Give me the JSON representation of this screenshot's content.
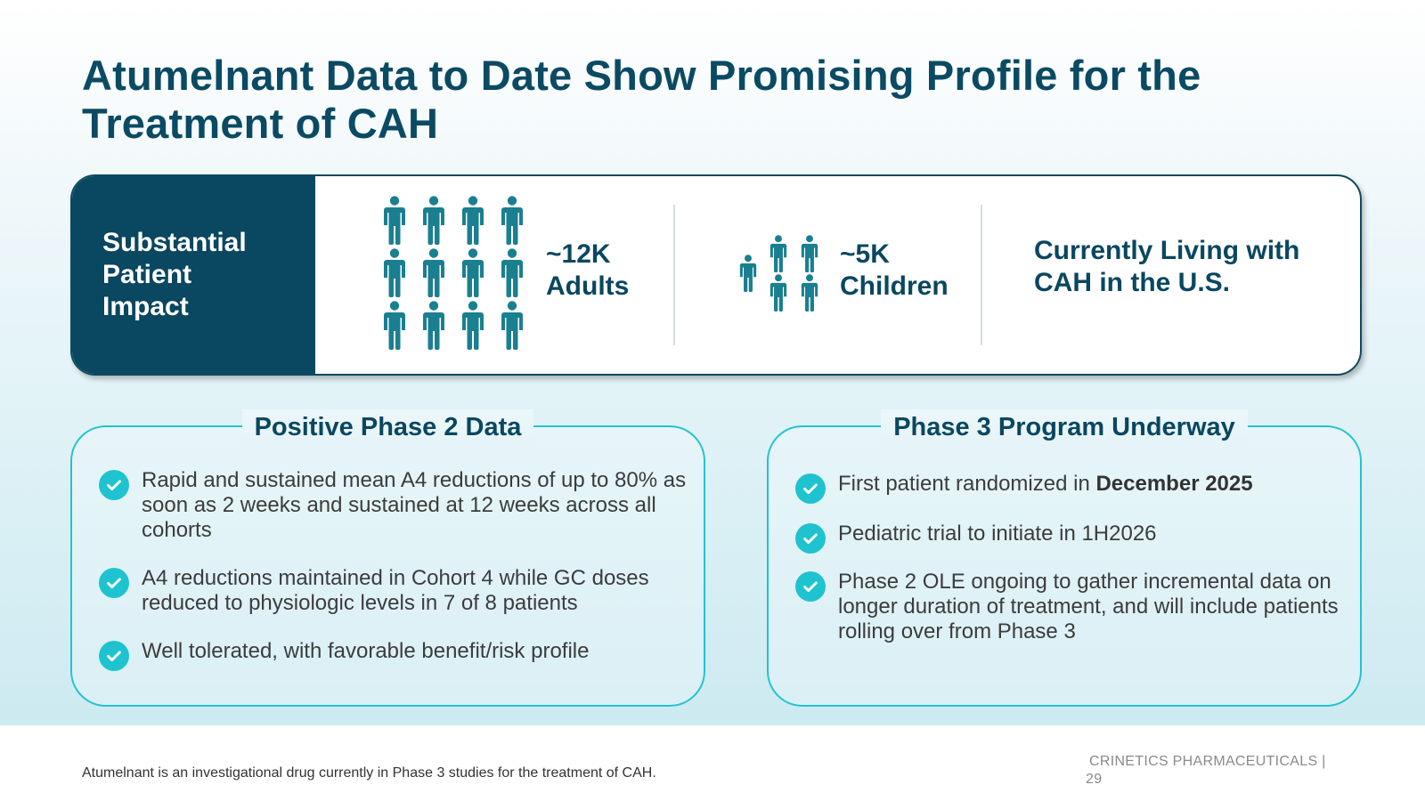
{
  "title": "Atumelnant Data to Date Show Promising Profile for the Treatment of CAH",
  "impact": {
    "label": "Substantial Patient Impact",
    "adults": {
      "count": "~12K",
      "label": "Adults",
      "icon": "adult-person-icon"
    },
    "children": {
      "count": "~5K",
      "label": "Children",
      "icon": "child-person-icon"
    },
    "living": "Currently Living with CAH in the U.S."
  },
  "phase2": {
    "title": "Positive Phase 2 Data",
    "bullets": [
      "Rapid and sustained mean A4 reductions of up to 80% as soon as 2 weeks and sustained at 12 weeks across all cohorts",
      "A4 reductions maintained in Cohort 4 while GC doses reduced to physiologic levels in 7 of 8 patients",
      "Well tolerated, with favorable benefit/risk profile"
    ]
  },
  "phase3": {
    "title": "Phase 3 Program Underway",
    "bullet1_prefix": "First patient randomized in ",
    "bullet1_bold": "December 2025",
    "bullet2": "Pediatric trial to initiate in 1H2026",
    "bullet3": "Phase 2 OLE ongoing to gather incremental data on longer duration of treatment, and will include patients rolling over from Phase 3"
  },
  "footer": {
    "note": "Atumelnant is an investigational drug currently in Phase 3 studies for the treatment of CAH.",
    "brand": "CRINETICS PHARMACEUTICALS |",
    "page": "29"
  },
  "colors": {
    "navy": "#0a4760",
    "teal_icon": "#1a7f90",
    "aqua": "#1fc3d0"
  }
}
